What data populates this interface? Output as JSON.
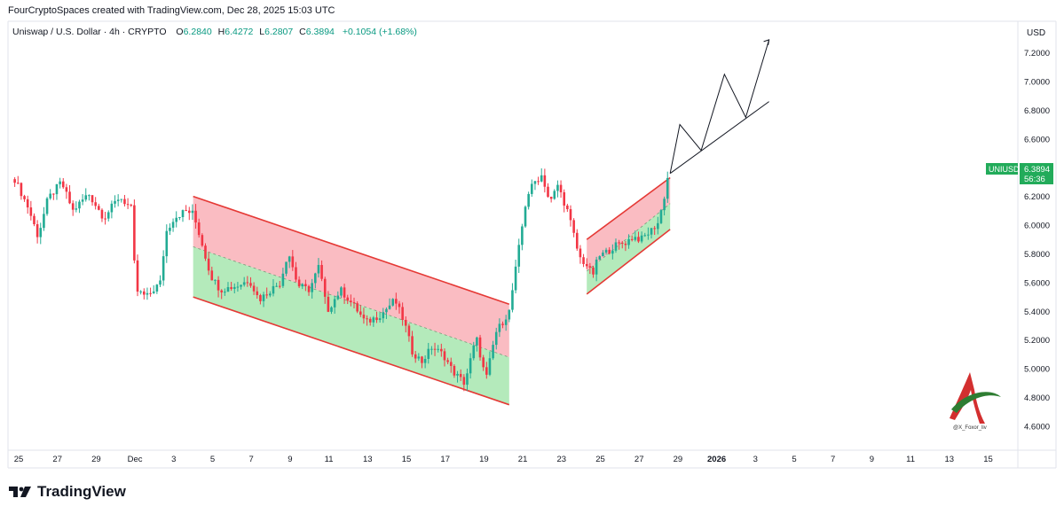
{
  "header": {
    "credit": "FourCryptoSpaces created with TradingView.com, Dec 28, 2025 15:03 UTC"
  },
  "legend": {
    "symbol": "Uniswap / U.S. Dollar · 4h · CRYPTO",
    "o_label": "O",
    "o": "6.2840",
    "h_label": "H",
    "h": "6.4272",
    "l_label": "L",
    "l": "6.2807",
    "c_label": "C",
    "c": "6.3894",
    "change": "+0.1054 (+1.68%)"
  },
  "price_axis": {
    "currency": "USD",
    "badge_symbol": "UNIUSD",
    "badge_price": "6.3894",
    "badge_countdown": "56:36"
  },
  "watermark": {
    "handle": "@X_Foxor_liv"
  },
  "footer": {
    "brand": "TradingView"
  },
  "colors": {
    "up": "#089981",
    "down": "#f23645",
    "bull_candle": "#22ab94",
    "bear_candle": "#f23645",
    "channel_line": "#e53935",
    "upper_fill": "#f8a5ad",
    "lower_fill": "#9be3a4",
    "badge": "#22ab5a",
    "projection": "#131722"
  },
  "chart_data": {
    "type": "candlestick",
    "symbol": "UNIUSD",
    "timeframe": "4h",
    "ylim": [
      4.5,
      7.35
    ],
    "y_ticks": [
      "7.2000",
      "7.0000",
      "6.8000",
      "6.6000",
      "6.4000",
      "6.2000",
      "6.0000",
      "5.8000",
      "5.6000",
      "5.4000",
      "5.2000",
      "5.0000",
      "4.8000",
      "4.6000"
    ],
    "x_ticks": [
      "25",
      "27",
      "29",
      "Dec",
      "3",
      "5",
      "7",
      "9",
      "11",
      "13",
      "15",
      "17",
      "19",
      "21",
      "23",
      "25",
      "27",
      "29",
      "2026",
      "3",
      "5",
      "7",
      "9",
      "11",
      "13",
      "15"
    ],
    "x_tick_values": [
      0,
      2,
      4,
      6,
      8,
      10,
      12,
      14,
      16,
      18,
      20,
      22,
      24,
      26,
      28,
      30,
      32,
      34,
      36,
      38,
      40,
      42,
      44,
      46,
      48,
      50
    ],
    "last_close": 6.3894,
    "price_path": [
      [
        -0.2,
        6.32
      ],
      [
        0.5,
        6.12
      ],
      [
        1.0,
        5.92
      ],
      [
        1.5,
        6.18
      ],
      [
        2.2,
        6.3
      ],
      [
        2.8,
        6.1
      ],
      [
        3.6,
        6.22
      ],
      [
        4.4,
        6.05
      ],
      [
        5.2,
        6.2
      ],
      [
        5.9,
        6.1
      ],
      [
        6.0,
        5.55
      ],
      [
        6.6,
        5.5
      ],
      [
        7.3,
        5.6
      ],
      [
        7.6,
        5.95
      ],
      [
        8.0,
        6.05
      ],
      [
        8.6,
        6.1
      ],
      [
        9.0,
        6.08
      ],
      [
        9.4,
        5.9
      ],
      [
        9.9,
        5.65
      ],
      [
        10.4,
        5.55
      ],
      [
        11.3,
        5.58
      ],
      [
        11.9,
        5.62
      ],
      [
        12.4,
        5.48
      ],
      [
        13.0,
        5.55
      ],
      [
        13.5,
        5.6
      ],
      [
        13.9,
        5.82
      ],
      [
        14.4,
        5.58
      ],
      [
        15.0,
        5.55
      ],
      [
        15.5,
        5.72
      ],
      [
        15.9,
        5.4
      ],
      [
        16.6,
        5.55
      ],
      [
        17.4,
        5.42
      ],
      [
        17.9,
        5.32
      ],
      [
        18.7,
        5.38
      ],
      [
        19.4,
        5.48
      ],
      [
        19.9,
        5.32
      ],
      [
        20.3,
        5.12
      ],
      [
        20.8,
        5.05
      ],
      [
        21.3,
        5.15
      ],
      [
        21.9,
        5.1
      ],
      [
        22.4,
        4.98
      ],
      [
        23.0,
        4.9
      ],
      [
        23.6,
        5.22
      ],
      [
        24.1,
        4.92
      ],
      [
        24.6,
        5.25
      ],
      [
        25.3,
        5.4
      ],
      [
        25.7,
        5.75
      ],
      [
        26.2,
        6.2
      ],
      [
        26.6,
        6.3
      ],
      [
        27.0,
        6.35
      ],
      [
        27.4,
        6.15
      ],
      [
        27.8,
        6.28
      ],
      [
        28.3,
        6.1
      ],
      [
        28.6,
        5.95
      ],
      [
        28.9,
        5.78
      ],
      [
        29.3,
        5.72
      ],
      [
        29.6,
        5.65
      ],
      [
        29.9,
        5.78
      ],
      [
        30.4,
        5.82
      ],
      [
        30.8,
        5.86
      ],
      [
        31.3,
        5.88
      ],
      [
        31.7,
        5.92
      ],
      [
        32.1,
        5.9
      ],
      [
        32.6,
        5.96
      ],
      [
        33.0,
        6.02
      ],
      [
        33.3,
        6.2
      ],
      [
        33.55,
        6.39
      ]
    ],
    "descending_channel": {
      "upper": [
        [
          9.0,
          6.2
        ],
        [
          25.3,
          5.45
        ]
      ],
      "lower": [
        [
          9.0,
          5.5
        ],
        [
          25.3,
          4.75
        ]
      ],
      "midline": [
        [
          9.0,
          5.85
        ],
        [
          25.3,
          5.08
        ]
      ]
    },
    "rising_wedge": {
      "upper": [
        [
          29.3,
          5.9
        ],
        [
          33.6,
          6.33
        ]
      ],
      "lower": [
        [
          29.3,
          5.52
        ],
        [
          33.6,
          5.97
        ]
      ],
      "midline": [
        [
          29.3,
          5.68
        ],
        [
          33.6,
          6.15
        ]
      ]
    },
    "projection_path": [
      [
        33.6,
        6.36
      ],
      [
        34.1,
        6.7
      ],
      [
        35.2,
        6.52
      ],
      [
        36.4,
        7.05
      ],
      [
        37.5,
        6.75
      ],
      [
        38.7,
        7.29
      ]
    ],
    "projection_trendline": [
      [
        33.6,
        6.36
      ],
      [
        38.7,
        6.86
      ]
    ]
  }
}
